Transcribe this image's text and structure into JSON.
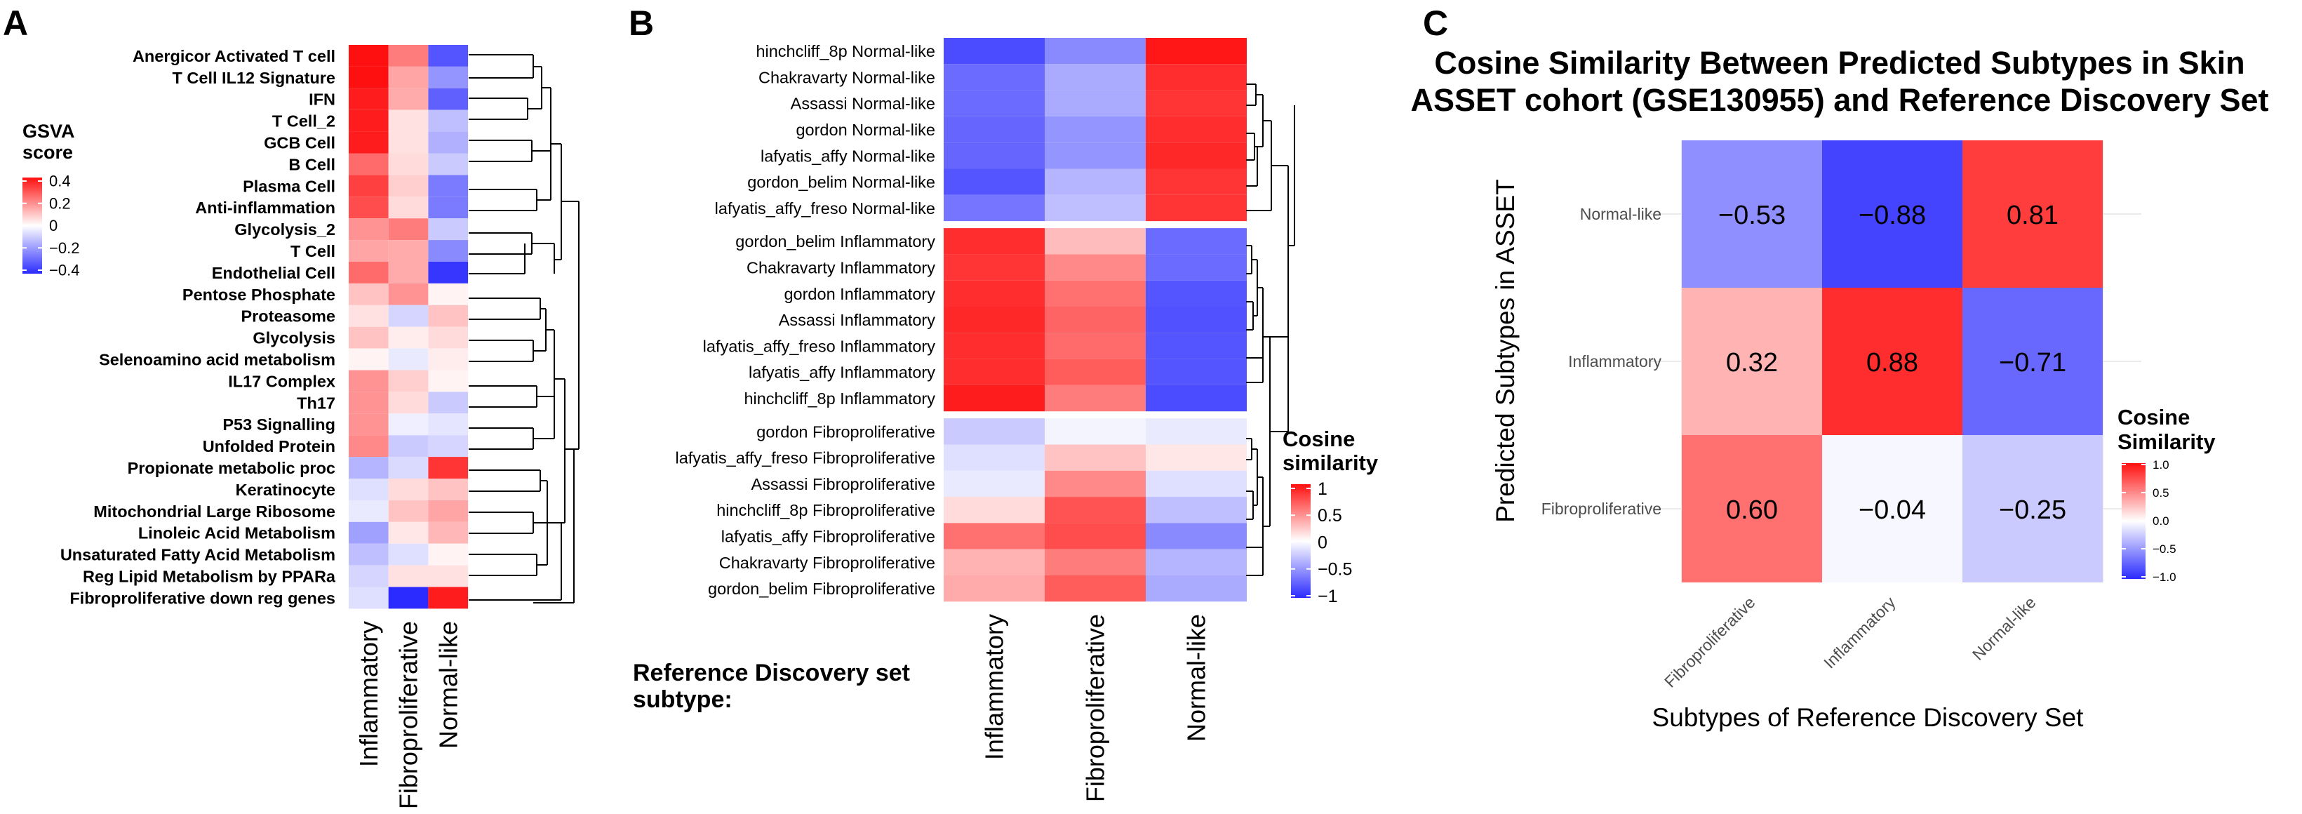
{
  "colors": {
    "low": "#2b2bff",
    "mid": "#ffffff",
    "high": "#ff1010"
  },
  "panel_labels": {
    "a": "A",
    "b": "B",
    "c": "C"
  },
  "chart_data": [
    {
      "type": "heatmap",
      "id": "A",
      "legend": {
        "title_line1": "GSVA",
        "title_line2": "score",
        "ticks": [
          "0.4",
          "0.2",
          "0",
          "−0.2",
          "−0.4"
        ],
        "range": [
          -0.4,
          0.4
        ]
      },
      "columns": [
        "Inflammatory",
        "Fibroproliferative",
        "Normal-like"
      ],
      "rows": [
        "Anergicor Activated T cell",
        "T Cell IL12 Signature",
        "IFN",
        "T Cell_2",
        "GCB Cell",
        "B Cell",
        "Plasma Cell",
        "Anti-inflammation",
        "Glycolysis_2",
        "T Cell",
        "Endothelial Cell",
        "Pentose Phosphate",
        "Proteasome",
        "Glycolysis",
        "Selenoamino acid metabolism",
        "IL17 Complex",
        "Th17",
        "P53 Signalling",
        "Unfolded Protein",
        "Propionate metabolic proc",
        "Keratinocyte",
        "Mitochondrial Large Ribosome",
        "Linoleic Acid Metabolism",
        "Unsaturated Fatty Acid Metabolism",
        "Reg Lipid Metabolism by PPARa",
        "Fibroproliferative down reg genes"
      ],
      "values": [
        [
          0.4,
          0.22,
          -0.32
        ],
        [
          0.4,
          0.15,
          -0.2
        ],
        [
          0.38,
          0.14,
          -0.3
        ],
        [
          0.38,
          0.05,
          -0.12
        ],
        [
          0.38,
          0.05,
          -0.15
        ],
        [
          0.25,
          0.06,
          -0.1
        ],
        [
          0.32,
          0.08,
          -0.25
        ],
        [
          0.3,
          0.06,
          -0.25
        ],
        [
          0.18,
          0.22,
          -0.1
        ],
        [
          0.15,
          0.14,
          -0.22
        ],
        [
          0.25,
          0.14,
          -0.38
        ],
        [
          0.1,
          0.18,
          0.02
        ],
        [
          0.05,
          -0.08,
          0.1
        ],
        [
          0.1,
          0.03,
          0.06
        ],
        [
          0.02,
          -0.04,
          0.03
        ],
        [
          0.18,
          0.08,
          0.02
        ],
        [
          0.18,
          0.06,
          -0.1
        ],
        [
          0.18,
          -0.03,
          -0.05
        ],
        [
          0.2,
          -0.1,
          -0.08
        ],
        [
          -0.14,
          -0.07,
          0.34
        ],
        [
          -0.06,
          0.06,
          0.1
        ],
        [
          -0.04,
          0.1,
          0.15
        ],
        [
          -0.18,
          0.04,
          0.12
        ],
        [
          -0.12,
          -0.06,
          0.02
        ],
        [
          -0.08,
          0.05,
          0.05
        ],
        [
          -0.06,
          -0.4,
          0.38
        ]
      ]
    },
    {
      "type": "heatmap",
      "id": "B",
      "legend": {
        "title_line1": "Cosine",
        "title_line2": "similarity",
        "ticks": [
          "1",
          "0.5",
          "0",
          "−0.5",
          "−1"
        ],
        "range": [
          -1,
          1
        ]
      },
      "xlabel": "Reference Discovery set",
      "xlabel_line2": "subtype:",
      "columns": [
        "Inflammatory",
        "Fibroproliferative",
        "Normal-like"
      ],
      "rows": [
        "hinchcliff_8p Normal-like",
        "Chakravarty Normal-like",
        "Assassi Normal-like",
        "gordon Normal-like",
        "lafyatis_affy Normal-like",
        "gordon_belim Normal-like",
        "lafyatis_affy_freso Normal-like",
        "gordon_belim Inflammatory",
        "Chakravarty Inflammatory",
        "gordon Inflammatory",
        "Assassi Inflammatory",
        "lafyatis_affy_freso Inflammatory",
        "lafyatis_affy Inflammatory",
        "hinchcliff_8p Inflammatory",
        "gordon Fibroproliferative",
        "lafyatis_affy_freso Fibroproliferative",
        "Assassi Fibroproliferative",
        "hinchcliff_8p Fibroproliferative",
        "lafyatis_affy Fibroproliferative",
        "Chakravarty Fibroproliferative",
        "gordon_belim Fibroproliferative"
      ],
      "values": [
        [
          -0.85,
          -0.55,
          0.97
        ],
        [
          -0.7,
          -0.4,
          0.88
        ],
        [
          -0.7,
          -0.4,
          0.85
        ],
        [
          -0.72,
          -0.5,
          0.88
        ],
        [
          -0.72,
          -0.5,
          0.9
        ],
        [
          -0.8,
          -0.35,
          0.85
        ],
        [
          -0.65,
          -0.3,
          0.85
        ],
        [
          0.88,
          0.28,
          -0.7
        ],
        [
          0.85,
          0.5,
          -0.7
        ],
        [
          0.88,
          0.6,
          -0.8
        ],
        [
          0.9,
          0.65,
          -0.82
        ],
        [
          0.88,
          0.62,
          -0.8
        ],
        [
          0.88,
          0.68,
          -0.8
        ],
        [
          0.95,
          0.55,
          -0.85
        ],
        [
          -0.25,
          -0.05,
          -0.1
        ],
        [
          -0.15,
          0.25,
          0.1
        ],
        [
          -0.1,
          0.5,
          -0.15
        ],
        [
          0.15,
          0.72,
          -0.3
        ],
        [
          0.6,
          0.75,
          -0.55
        ],
        [
          0.32,
          0.55,
          -0.35
        ],
        [
          0.35,
          0.68,
          -0.4
        ]
      ]
    },
    {
      "type": "heatmap",
      "id": "C",
      "title": "Cosine Similarity Between Predicted Subtypes in Skin",
      "title_line2": "ASSET cohort (GSE130955) and Reference Discovery Set",
      "xlabel": "Subtypes of Reference Discovery Set",
      "ylabel": "Predicted Subtypes in ASSET",
      "legend": {
        "title_line1": "Cosine",
        "title_line2": "Similarity",
        "ticks": [
          "1.0",
          "0.5",
          "0.0",
          "−0.5",
          "−1.0"
        ],
        "range": [
          -1,
          1
        ]
      },
      "columns": [
        "Fibroproliferative",
        "Inflammatory",
        "Normal-like"
      ],
      "rows": [
        "Normal-like",
        "Inflammatory",
        "Fibroproliferative"
      ],
      "values": [
        [
          -0.53,
          -0.88,
          0.81
        ],
        [
          0.32,
          0.88,
          -0.71
        ],
        [
          0.6,
          -0.04,
          -0.25
        ]
      ],
      "labels": [
        [
          "−0.53",
          "−0.88",
          "0.81"
        ],
        [
          "0.32",
          "0.88",
          "−0.71"
        ],
        [
          "0.60",
          "−0.04",
          "−0.25"
        ]
      ]
    }
  ]
}
